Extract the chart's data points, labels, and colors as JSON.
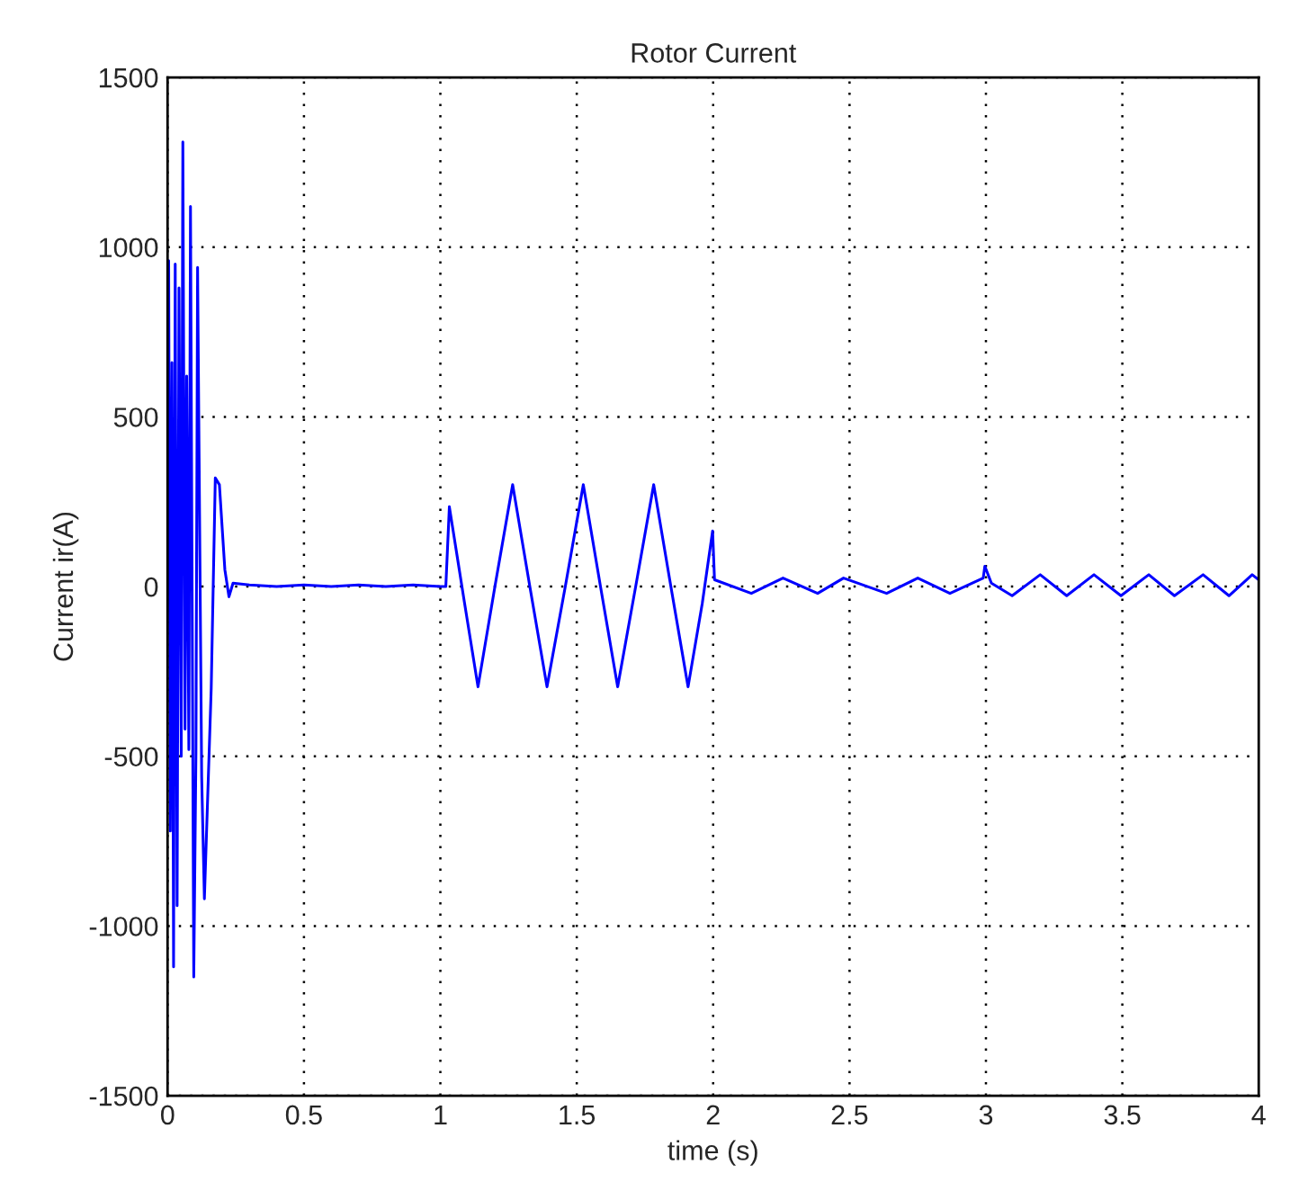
{
  "chart_data": {
    "type": "line",
    "title": "Rotor Current",
    "xlabel": "time (s)",
    "ylabel": "Current ir(A)",
    "series": [
      {
        "color": "#0000ff",
        "x": [
          0,
          0.004,
          0.01,
          0.016,
          0.022,
          0.028,
          0.035,
          0.042,
          0.05,
          0.056,
          0.064,
          0.07,
          0.078,
          0.084,
          0.096,
          0.104,
          0.11,
          0.125,
          0.135,
          0.16,
          0.175,
          0.19,
          0.21,
          0.225,
          0.24,
          0.3,
          0.4,
          0.5,
          0.6,
          0.7,
          0.8,
          0.9,
          1.0,
          1.02,
          1.033,
          1.085,
          1.138,
          1.2,
          1.265,
          1.328,
          1.391,
          1.458,
          1.524,
          1.587,
          1.65,
          1.716,
          1.782,
          1.845,
          1.908,
          1.96,
          1.998,
          2.005,
          2.14,
          2.256,
          2.383,
          2.478,
          2.636,
          2.75,
          2.868,
          2.99,
          2.996,
          3.02,
          3.096,
          3.199,
          3.296,
          3.396,
          3.495,
          3.597,
          3.691,
          3.796,
          3.891,
          3.976,
          4.0
        ],
        "values": [
          0,
          960,
          -720,
          660,
          -1120,
          950,
          -940,
          880,
          -500,
          1310,
          -420,
          620,
          -480,
          1120,
          -1150,
          -490,
          940,
          -560,
          -920,
          -300,
          320,
          300,
          50,
          -30,
          10,
          5,
          0,
          5,
          0,
          5,
          0,
          5,
          0,
          0,
          235,
          -30,
          -295,
          0,
          300,
          0,
          -295,
          0,
          300,
          0,
          -295,
          0,
          300,
          0,
          -295,
          -50,
          164,
          20,
          -20,
          25,
          -20,
          25,
          -20,
          25,
          -20,
          25,
          60,
          10,
          -27,
          35,
          -27,
          35,
          -27,
          35,
          -27,
          35,
          -27,
          35,
          20
        ]
      }
    ],
    "xlim": [
      0,
      4
    ],
    "ylim": [
      -1500,
      1500
    ],
    "xticks": [
      0,
      0.5,
      1,
      1.5,
      2,
      2.5,
      3,
      3.5,
      4
    ],
    "yticks": [
      -1500,
      -1000,
      -500,
      0,
      500,
      1000,
      1500
    ],
    "grid": true,
    "line_style": "solid"
  }
}
